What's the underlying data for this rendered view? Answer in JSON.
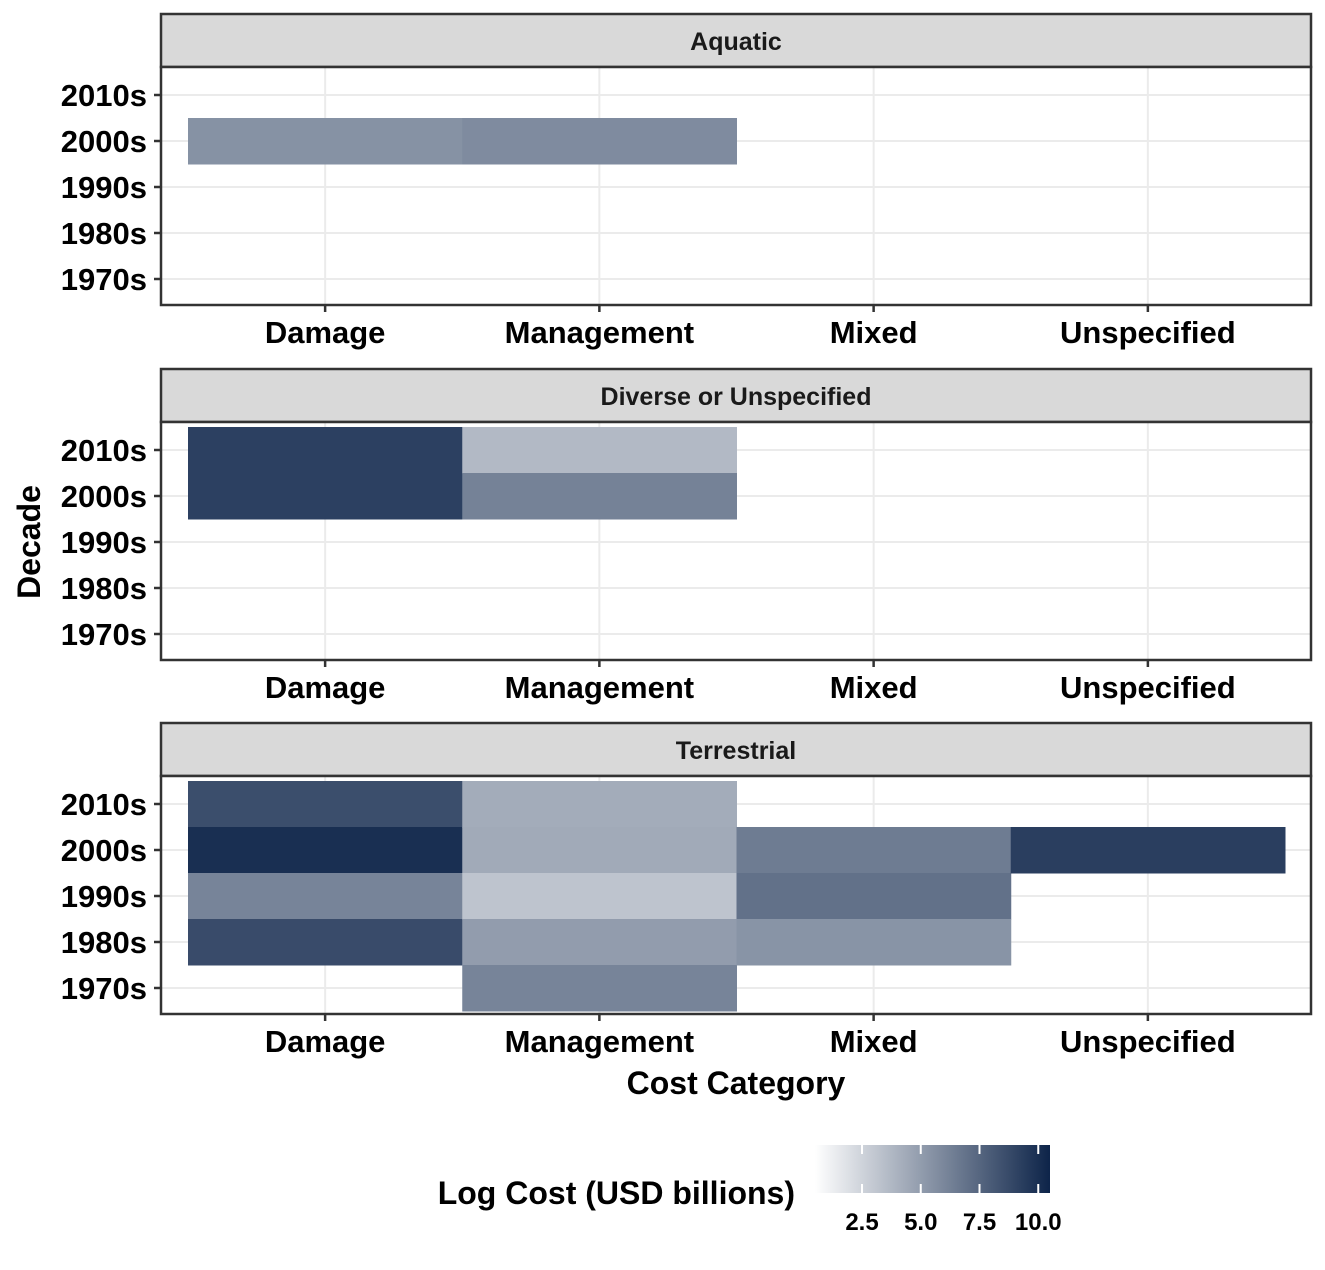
{
  "chart_data": {
    "type": "heatmap",
    "xlabel": "Cost Category",
    "ylabel": "Decade",
    "categories": [
      "Damage",
      "Management",
      "Mixed",
      "Unspecified"
    ],
    "decades": [
      "1970s",
      "1980s",
      "1990s",
      "2000s",
      "2010s"
    ],
    "facets": [
      {
        "name": "Aquatic",
        "cells": [
          {
            "category": "Damage",
            "decade": "2000s",
            "value": 5.5
          },
          {
            "category": "Management",
            "decade": "2000s",
            "value": 5.8
          }
        ]
      },
      {
        "name": "Diverse or Unspecified",
        "cells": [
          {
            "category": "Damage",
            "decade": "2010s",
            "value": 9.2
          },
          {
            "category": "Damage",
            "decade": "2000s",
            "value": 9.2
          },
          {
            "category": "Management",
            "decade": "2010s",
            "value": 3.7
          },
          {
            "category": "Management",
            "decade": "2000s",
            "value": 6.2
          }
        ]
      },
      {
        "name": "Terrestrial",
        "cells": [
          {
            "category": "Damage",
            "decade": "2010s",
            "value": 8.6
          },
          {
            "category": "Damage",
            "decade": "2000s",
            "value": 10.0
          },
          {
            "category": "Damage",
            "decade": "1990s",
            "value": 6.1
          },
          {
            "category": "Damage",
            "decade": "1980s",
            "value": 8.7
          },
          {
            "category": "Management",
            "decade": "2010s",
            "value": 4.3
          },
          {
            "category": "Management",
            "decade": "2000s",
            "value": 4.4
          },
          {
            "category": "Management",
            "decade": "1990s",
            "value": 3.2
          },
          {
            "category": "Management",
            "decade": "1980s",
            "value": 5.0
          },
          {
            "category": "Management",
            "decade": "1970s",
            "value": 6.1
          },
          {
            "category": "Mixed",
            "decade": "2000s",
            "value": 6.5
          },
          {
            "category": "Mixed",
            "decade": "1990s",
            "value": 7.0
          },
          {
            "category": "Mixed",
            "decade": "1980s",
            "value": 5.4
          },
          {
            "category": "Unspecified",
            "decade": "2000s",
            "value": 9.3
          }
        ]
      }
    ],
    "legend": {
      "title": "Log Cost (USD billions)",
      "ticks": [
        "2.5",
        "5.0",
        "7.5",
        "10.0"
      ],
      "tick_values": [
        2.5,
        5.0,
        7.5,
        10.0
      ],
      "range": [
        0.5,
        10.5
      ],
      "low_color": "#ffffff",
      "high_color": "#0d2449",
      "placement": "bottom"
    },
    "grid": true
  }
}
